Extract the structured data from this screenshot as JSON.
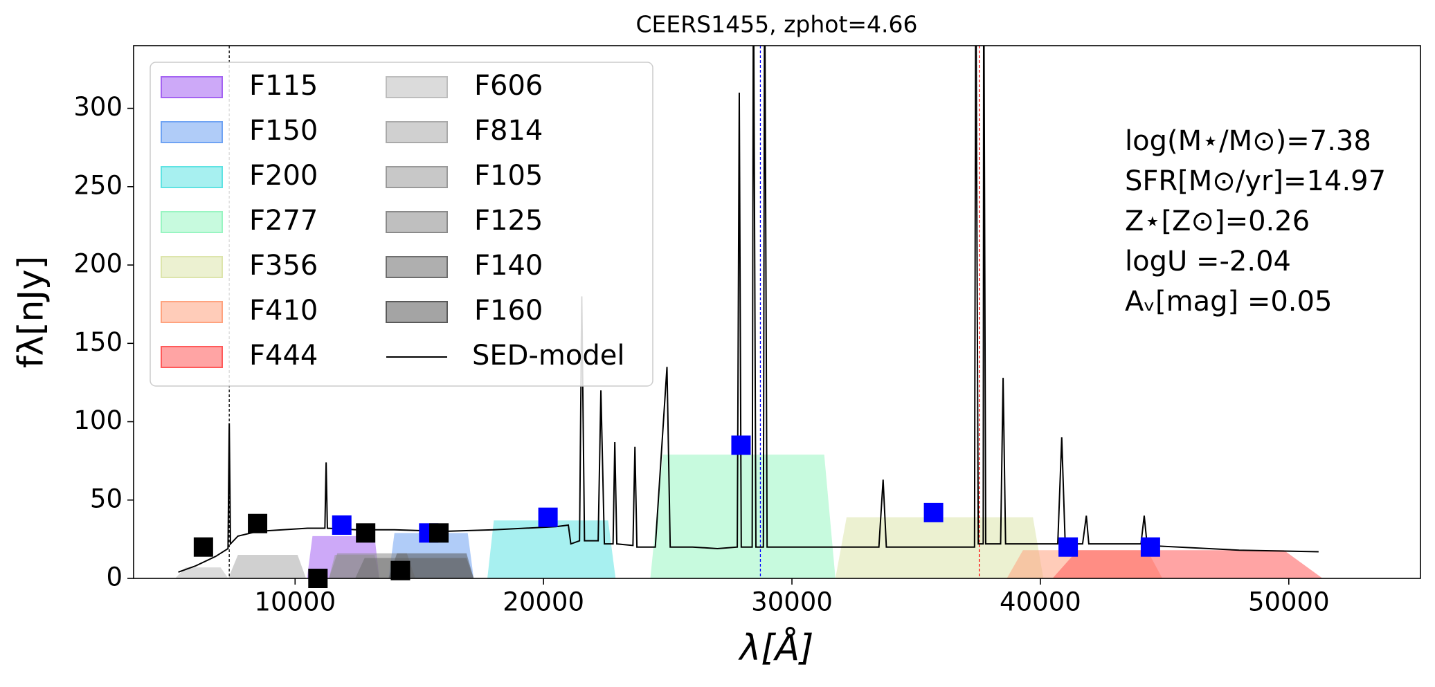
{
  "chart_data": {
    "type": "sed",
    "title": "CEERS1455, zphot=4.66",
    "xlabel": "λ[Å]",
    "ylabel": "fλ[nJy]",
    "xlim": [
      3500,
      55300
    ],
    "ylim": [
      0,
      340
    ],
    "xticks": [
      10000,
      20000,
      30000,
      40000,
      50000
    ],
    "yticks": [
      0,
      50,
      100,
      150,
      200,
      250,
      300
    ],
    "legend": "upper left",
    "filters": [
      {
        "name": "F115",
        "color": "#a463f2",
        "x": [
          10480,
          10700,
          13200,
          13390
        ],
        "values": [
          0,
          27,
          27,
          0
        ]
      },
      {
        "name": "F150",
        "color": "#6fa3f3",
        "x": [
          13760,
          14000,
          16950,
          17190
        ],
        "values": [
          0,
          29,
          29,
          0
        ]
      },
      {
        "name": "F200",
        "color": "#5fe3e3",
        "x": [
          17740,
          18000,
          22600,
          22900
        ],
        "values": [
          0,
          37,
          37,
          0
        ]
      },
      {
        "name": "F277",
        "color": "#99f5c2",
        "x": [
          24300,
          24800,
          31300,
          31750
        ],
        "values": [
          0,
          79,
          79,
          0
        ]
      },
      {
        "name": "F356",
        "color": "#dde5ac",
        "x": [
          31750,
          32200,
          39700,
          40120
        ],
        "values": [
          0,
          39,
          39,
          0
        ]
      },
      {
        "name": "F410",
        "color": "#ffa37f",
        "x": [
          38650,
          39300,
          44300,
          44910
        ],
        "values": [
          0,
          18,
          18,
          0
        ]
      },
      {
        "name": "F444",
        "color": "#ff5a5a",
        "x": [
          40490,
          41500,
          49800,
          51360
        ],
        "values": [
          0,
          18,
          18,
          0
        ]
      },
      {
        "name": "F606",
        "color": "#bdbdbd",
        "x": [
          5170,
          5600,
          7000,
          7310
        ],
        "values": [
          0,
          7,
          7,
          0
        ]
      },
      {
        "name": "F814",
        "color": "#a9a9a9",
        "x": [
          7310,
          7700,
          10100,
          10440
        ],
        "values": [
          0,
          15,
          15,
          0
        ]
      },
      {
        "name": "F105",
        "color": "#9a9a9a",
        "x": [
          11360,
          11600,
          13200,
          13390
        ],
        "values": [
          0,
          15,
          15,
          0
        ]
      },
      {
        "name": "F125",
        "color": "#8a8a8a",
        "x": [
          11360,
          11700,
          14500,
          14840
        ],
        "values": [
          0,
          16,
          16,
          0
        ]
      },
      {
        "name": "F140",
        "color": "#6e6e6e",
        "x": [
          12420,
          12800,
          16900,
          17190
        ],
        "values": [
          0,
          13,
          13,
          0
        ]
      },
      {
        "name": "F160",
        "color": "#5a5a5a",
        "x": [
          13760,
          14100,
          16900,
          17190
        ],
        "values": [
          0,
          16,
          16,
          0
        ]
      }
    ],
    "series": [
      {
        "name": "SED-model",
        "color": "#000000",
        "x": [
          5300,
          6000,
          6800,
          7300,
          7350,
          7400,
          7700,
          8500,
          9500,
          10500,
          11200,
          11250,
          11300,
          12500,
          14000,
          16000,
          18000,
          20500,
          21000,
          21100,
          21450,
          21540,
          21650,
          22200,
          22310,
          22450,
          22800,
          22870,
          22950,
          23600,
          23680,
          23760,
          24500,
          24970,
          25100,
          26000,
          27000,
          27800,
          27880,
          27960,
          28400,
          28450,
          28550,
          28850,
          28900,
          29000,
          31000,
          33500,
          33670,
          33800,
          35000,
          37350,
          37400,
          37500,
          37700,
          37720,
          37800,
          38400,
          38500,
          38600,
          40700,
          40860,
          41000,
          41700,
          41850,
          41950,
          44050,
          44180,
          44300,
          48000,
          51200
        ],
        "values": [
          4,
          8,
          14,
          19,
          99,
          22,
          27,
          30,
          31,
          32,
          32,
          74,
          32,
          31,
          31,
          30,
          31,
          33,
          34,
          22,
          24,
          180,
          24,
          24,
          120,
          22,
          22,
          87,
          22,
          21,
          84,
          20,
          20,
          135,
          20,
          20,
          19,
          20,
          310,
          20,
          20,
          400,
          20,
          20,
          400,
          20,
          20,
          20,
          63,
          20,
          20,
          20,
          400,
          22,
          22,
          400,
          22,
          22,
          128,
          22,
          22,
          90,
          22,
          22,
          40,
          22,
          22,
          40,
          21,
          18,
          17
        ]
      }
    ],
    "points": [
      {
        "color": "#0000ff",
        "x": [
          11880,
          15380,
          20180,
          27950,
          35700,
          41120,
          44430
        ],
        "values": [
          34,
          29,
          39,
          85,
          42,
          20,
          20
        ]
      },
      {
        "color": "#000000",
        "x": [
          6310,
          8490,
          10920,
          12840,
          14240,
          15790
        ],
        "values": [
          20,
          35,
          0,
          29,
          5,
          29
        ]
      }
    ],
    "vlines": [
      {
        "x": 7350,
        "color": "#000000"
      },
      {
        "x": 28730,
        "color": "#0000ff"
      },
      {
        "x": 37540,
        "color": "#ff0000"
      }
    ],
    "annotations": [
      "log(M⋆/M⊙)=7.38",
      "SFR[M⊙/yr]=14.97",
      "Z⋆[Z⊙]=0.26",
      "logU =-2.04",
      "Aᵥ[mag] =0.05"
    ]
  }
}
